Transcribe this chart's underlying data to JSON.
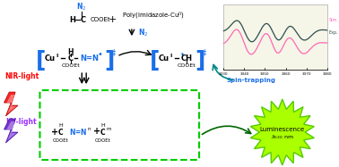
{
  "bg_color": "#ffffff",
  "bracket_color": "#1a6ee8",
  "n2_color": "#1a6ee8",
  "radical_color": "#1a6ee8",
  "nir_color": "#ff0000",
  "uv_color": "#9b30ff",
  "polymer_box_color": "#00cc00",
  "luminescence_color": "#aaff00",
  "spin_trap_color": "#1a6ee8",
  "green_arrow_color": "#006600",
  "epr_sim_color": "#ff69b4",
  "epr_exp_color": "#2f4f4f",
  "epr_ticks": [
    3330,
    3340,
    3350,
    3360,
    3370,
    3380
  ]
}
